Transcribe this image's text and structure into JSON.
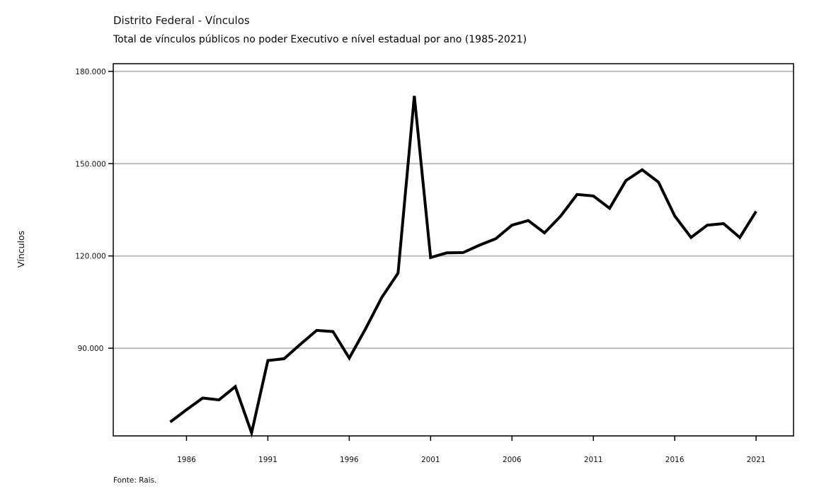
{
  "header": {
    "subtitle": "Distrito Federal - Vínculos",
    "title": "Total de vínculos públicos no poder Executivo e nível estadual por ano (1985-2021)"
  },
  "footer": {
    "source": "Fonte: Rais."
  },
  "chart_data": {
    "type": "line",
    "title": "Total de vínculos públicos no poder Executivo e nível estadual por ano (1985-2021)",
    "subtitle": "Distrito Federal - Vínculos",
    "xlabel": "",
    "ylabel": "Vínculos",
    "x": [
      1985,
      1986,
      1987,
      1988,
      1989,
      1990,
      1991,
      1992,
      1993,
      1994,
      1995,
      1996,
      1997,
      1998,
      1999,
      2000,
      2001,
      2002,
      2003,
      2004,
      2005,
      2006,
      2007,
      2008,
      2009,
      2010,
      2011,
      2012,
      2013,
      2014,
      2015,
      2016,
      2017,
      2018,
      2019,
      2020,
      2021
    ],
    "series": [
      {
        "values": [
          66000,
          70000,
          73800,
          73200,
          77500,
          62500,
          86000,
          86600,
          91300,
          95800,
          95400,
          86800,
          96300,
          106500,
          114400,
          172000,
          119500,
          121000,
          121100,
          123500,
          125600,
          130000,
          131500,
          127500,
          133000,
          140000,
          139500,
          135500,
          144500,
          148000,
          144000,
          133000,
          126000,
          130000,
          130500,
          126000,
          134500
        ],
        "color": "#000000"
      }
    ],
    "xlim": [
      1981.5,
      2023.3
    ],
    "ylim": [
      61500,
      182500
    ],
    "x_ticks": [
      "1986",
      "1991",
      "1996",
      "2001",
      "2006",
      "2011",
      "2016",
      "2021"
    ],
    "y_ticks": [
      {
        "value": 90000,
        "label": "90.000"
      },
      {
        "value": 120000,
        "label": "120.000"
      },
      {
        "value": 150000,
        "label": "150.000"
      },
      {
        "value": 180000,
        "label": "180.000"
      }
    ],
    "grid": "horizontal",
    "grid_color": "#bdbdbd",
    "legend": "none"
  }
}
